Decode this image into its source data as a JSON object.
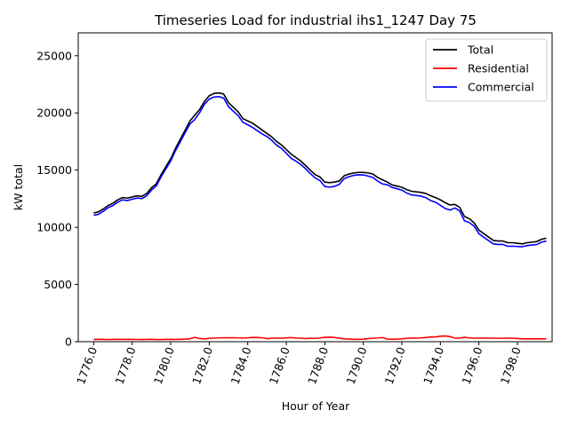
{
  "chart_data": {
    "type": "line",
    "title": "Timeseries Load for industrial ihs1_1247  Day 75",
    "xlabel": "Hour of Year",
    "ylabel": "kW total",
    "xlim": [
      1775.2,
      1799.8
    ],
    "ylim": [
      0,
      27000
    ],
    "xticks": [
      1776,
      1778,
      1780,
      1782,
      1784,
      1786,
      1788,
      1790,
      1792,
      1794,
      1796,
      1798
    ],
    "xtick_labels": [
      "1776.0",
      "1778.0",
      "1780.0",
      "1782.0",
      "1784.0",
      "1786.0",
      "1788.0",
      "1790.0",
      "1792.0",
      "1794.0",
      "1796.0",
      "1798.0"
    ],
    "yticks": [
      0,
      5000,
      10000,
      15000,
      20000,
      25000
    ],
    "ytick_labels": [
      "0",
      "5000",
      "10000",
      "15000",
      "20000",
      "25000"
    ],
    "legend_position": "top-right",
    "x": [
      1776.0,
      1776.25,
      1776.5,
      1776.75,
      1777.0,
      1777.25,
      1777.5,
      1777.75,
      1778.0,
      1778.25,
      1778.5,
      1778.75,
      1779.0,
      1779.25,
      1779.5,
      1779.75,
      1780.0,
      1780.25,
      1780.5,
      1780.75,
      1781.0,
      1781.25,
      1781.5,
      1781.75,
      1782.0,
      1782.25,
      1782.5,
      1782.75,
      1783.0,
      1783.25,
      1783.5,
      1783.75,
      1784.0,
      1784.25,
      1784.5,
      1784.75,
      1785.0,
      1785.25,
      1785.5,
      1785.75,
      1786.0,
      1786.25,
      1786.5,
      1786.75,
      1787.0,
      1787.25,
      1787.5,
      1787.75,
      1788.0,
      1788.25,
      1788.5,
      1788.75,
      1789.0,
      1789.25,
      1789.5,
      1789.75,
      1790.0,
      1790.25,
      1790.5,
      1790.75,
      1791.0,
      1791.25,
      1791.5,
      1791.75,
      1792.0,
      1792.25,
      1792.5,
      1792.75,
      1793.0,
      1793.25,
      1793.5,
      1793.75,
      1794.0,
      1794.25,
      1794.5,
      1794.75,
      1795.0,
      1795.25,
      1795.5,
      1795.75,
      1796.0,
      1796.25,
      1796.5,
      1796.75,
      1797.0,
      1797.25,
      1797.5,
      1797.75,
      1798.0,
      1798.25,
      1798.5,
      1798.75,
      1799.0,
      1799.25,
      1799.5
    ],
    "series": [
      {
        "name": "Total",
        "color": "#000000",
        "values": [
          11250,
          11350,
          11600,
          11900,
          12100,
          12400,
          12600,
          12550,
          12650,
          12750,
          12700,
          12950,
          13450,
          13800,
          14600,
          15300,
          16000,
          16900,
          17700,
          18500,
          19300,
          19800,
          20300,
          21000,
          21500,
          21700,
          21750,
          21650,
          20900,
          20500,
          20100,
          19500,
          19300,
          19100,
          18800,
          18500,
          18200,
          17900,
          17500,
          17200,
          16800,
          16400,
          16100,
          15800,
          15400,
          15000,
          14600,
          14400,
          13950,
          13900,
          13950,
          14050,
          14500,
          14650,
          14750,
          14800,
          14800,
          14750,
          14650,
          14350,
          14150,
          13950,
          13700,
          13600,
          13500,
          13300,
          13150,
          13100,
          13050,
          12950,
          12750,
          12600,
          12400,
          12150,
          11950,
          12000,
          11750,
          10950,
          10750,
          10400,
          9750,
          9450,
          9150,
          8850,
          8800,
          8800,
          8650,
          8650,
          8600,
          8550,
          8650,
          8700,
          8750,
          8950,
          9050
        ]
      },
      {
        "name": "Residential",
        "color": "#ff0000",
        "values": [
          200,
          210,
          200,
          190,
          200,
          205,
          200,
          210,
          200,
          195,
          190,
          200,
          205,
          190,
          190,
          200,
          205,
          195,
          210,
          230,
          260,
          380,
          280,
          250,
          290,
          310,
          330,
          350,
          340,
          350,
          330,
          320,
          340,
          370,
          360,
          340,
          270,
          300,
          320,
          300,
          330,
          360,
          320,
          300,
          280,
          300,
          290,
          320,
          380,
          390,
          370,
          300,
          250,
          230,
          210,
          210,
          220,
          270,
          300,
          320,
          360,
          230,
          220,
          230,
          250,
          300,
          320,
          310,
          330,
          360,
          420,
          410,
          480,
          500,
          450,
          310,
          310,
          380,
          330,
          300,
          310,
          320,
          310,
          300,
          300,
          300,
          310,
          300,
          280,
          250,
          250,
          250,
          260,
          250,
          250
        ]
      },
      {
        "name": "Commercial",
        "color": "#0000ff",
        "values": [
          11050,
          11140,
          11400,
          11710,
          11900,
          12195,
          12400,
          12340,
          12450,
          12555,
          12510,
          12750,
          13245,
          13610,
          14410,
          15100,
          15795,
          16705,
          17490,
          18270,
          19040,
          19420,
          20020,
          20750,
          21210,
          21390,
          21420,
          21300,
          20560,
          20150,
          19770,
          19180,
          18960,
          18730,
          18440,
          18160,
          17930,
          17600,
          17180,
          16900,
          16470,
          16040,
          15780,
          15500,
          15120,
          14700,
          14310,
          14080,
          13570,
          13510,
          13580,
          13750,
          14250,
          14420,
          14540,
          14590,
          14580,
          14480,
          14350,
          14030,
          13790,
          13720,
          13480,
          13370,
          13250,
          13000,
          12830,
          12790,
          12720,
          12590,
          12330,
          12190,
          11920,
          11650,
          11500,
          11690,
          11440,
          10570,
          10420,
          10100,
          9440,
          9130,
          8840,
          8550,
          8500,
          8500,
          8340,
          8350,
          8320,
          8300,
          8400,
          8450,
          8490,
          8700,
          8800
        ]
      }
    ]
  }
}
